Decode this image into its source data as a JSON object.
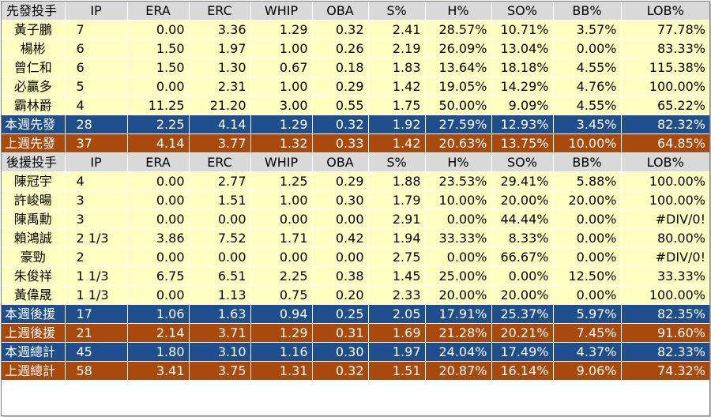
{
  "columns": [
    "IP",
    "ERA",
    "ERC",
    "WHIP",
    "OBA",
    "S%",
    "H%",
    "SO%",
    "BB%",
    "LOB%"
  ],
  "sections": [
    {
      "header": "先發投手",
      "rows": [
        {
          "type": "player",
          "name": "黃子鵬",
          "cells": [
            "7",
            "0.00",
            "3.36",
            "1.29",
            "0.32",
            "2.41",
            "28.57%",
            "10.71%",
            "3.57%",
            "77.78%"
          ]
        },
        {
          "type": "player",
          "name": "楊彬",
          "cells": [
            "6",
            "1.50",
            "1.97",
            "1.00",
            "0.26",
            "2.19",
            "26.09%",
            "13.04%",
            "0.00%",
            "83.33%"
          ]
        },
        {
          "type": "player",
          "name": "曾仁和",
          "cells": [
            "6",
            "1.50",
            "1.30",
            "0.67",
            "0.18",
            "1.83",
            "13.64%",
            "18.18%",
            "4.55%",
            "115.38%"
          ]
        },
        {
          "type": "player",
          "name": "必贏多",
          "cells": [
            "5",
            "0.00",
            "2.31",
            "1.00",
            "0.29",
            "1.42",
            "19.05%",
            "14.29%",
            "4.76%",
            "100.00%"
          ]
        },
        {
          "type": "player",
          "name": "霸林爵",
          "cells": [
            "4",
            "11.25",
            "21.20",
            "3.00",
            "0.55",
            "1.75",
            "50.00%",
            "9.09%",
            "4.55%",
            "65.22%"
          ]
        },
        {
          "type": "week",
          "name": "本週先發",
          "cells": [
            "28",
            "2.25",
            "4.14",
            "1.29",
            "0.32",
            "1.92",
            "27.59%",
            "12.93%",
            "3.45%",
            "82.32%"
          ]
        },
        {
          "type": "lastweek",
          "name": "上週先發",
          "cells": [
            "37",
            "4.14",
            "3.77",
            "1.32",
            "0.33",
            "1.42",
            "20.63%",
            "13.75%",
            "10.00%",
            "64.85%"
          ]
        }
      ]
    },
    {
      "header": "後援投手",
      "rows": [
        {
          "type": "player",
          "name": "陳冠宇",
          "cells": [
            "4",
            "0.00",
            "2.77",
            "1.25",
            "0.29",
            "1.88",
            "23.53%",
            "29.41%",
            "5.88%",
            "100.00%"
          ]
        },
        {
          "type": "player",
          "name": "許峻暘",
          "cells": [
            "3",
            "0.00",
            "1.51",
            "1.00",
            "0.30",
            "1.79",
            "10.00%",
            "20.00%",
            "20.00%",
            "100.00%"
          ]
        },
        {
          "type": "player",
          "name": "陳禹勳",
          "cells": [
            "3",
            "0.00",
            "0.00",
            "0.00",
            "0.00",
            "2.91",
            "0.00%",
            "44.44%",
            "0.00%",
            "#DIV/0!"
          ]
        },
        {
          "type": "player",
          "name": "賴鴻誠",
          "cells": [
            "2 1/3",
            "3.86",
            "7.52",
            "1.71",
            "0.42",
            "1.94",
            "33.33%",
            "8.33%",
            "0.00%",
            "80.00%"
          ]
        },
        {
          "type": "player",
          "name": "豪勁",
          "cells": [
            "2",
            "0.00",
            "0.00",
            "0.00",
            "0.00",
            "2.75",
            "0.00%",
            "66.67%",
            "0.00%",
            "#DIV/0!"
          ]
        },
        {
          "type": "player",
          "name": "朱俊祥",
          "cells": [
            "1 1/3",
            "6.75",
            "6.51",
            "2.25",
            "0.38",
            "1.45",
            "25.00%",
            "0.00%",
            "12.50%",
            "33.33%"
          ]
        },
        {
          "type": "player",
          "name": "黃偉晟",
          "cells": [
            "1 1/3",
            "0.00",
            "1.13",
            "0.75",
            "0.20",
            "2.33",
            "20.00%",
            "20.00%",
            "0.00%",
            "100.00%"
          ]
        },
        {
          "type": "week",
          "name": "本週後援",
          "cells": [
            "17",
            "1.06",
            "1.63",
            "0.94",
            "0.25",
            "2.05",
            "17.91%",
            "25.37%",
            "5.97%",
            "82.35%"
          ]
        },
        {
          "type": "lastweek",
          "name": "上週後援",
          "cells": [
            "21",
            "2.14",
            "3.71",
            "1.29",
            "0.31",
            "1.69",
            "21.28%",
            "20.21%",
            "7.45%",
            "91.60%"
          ]
        },
        {
          "type": "week",
          "name": "本週總計",
          "cells": [
            "45",
            "1.80",
            "3.10",
            "1.16",
            "0.30",
            "1.97",
            "24.04%",
            "17.49%",
            "4.37%",
            "82.33%"
          ]
        },
        {
          "type": "lastweek",
          "name": "上週總計",
          "cells": [
            "58",
            "3.41",
            "3.75",
            "1.31",
            "0.32",
            "1.51",
            "20.87%",
            "16.14%",
            "9.06%",
            "74.32%"
          ]
        }
      ]
    }
  ],
  "colors": {
    "header_bg": "#d9d9d9",
    "player_bg": "#ffffc0",
    "this_week_bg": "#1f4e8c",
    "last_week_bg": "#a94a0c"
  }
}
